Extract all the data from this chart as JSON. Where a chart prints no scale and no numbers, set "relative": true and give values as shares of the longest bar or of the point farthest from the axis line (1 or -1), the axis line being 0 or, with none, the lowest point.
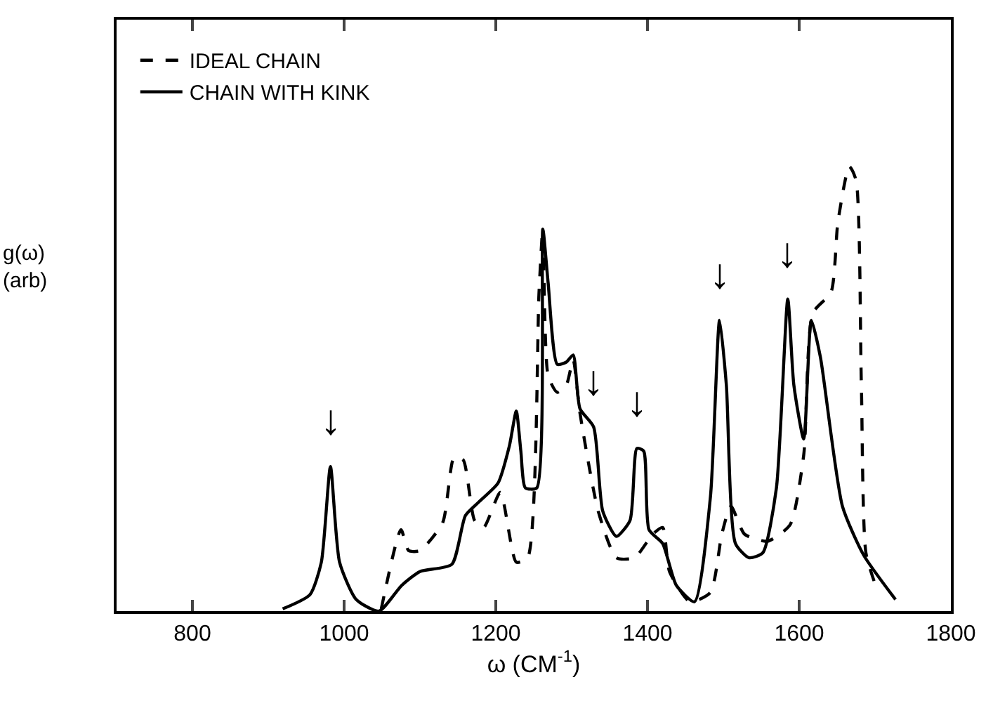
{
  "chart_data": {
    "type": "line",
    "relative": true,
    "xlabel": "ω (CM$^{-1}$)",
    "ylabel": "g(ω)\n(arb)",
    "xlim": [
      700,
      1800
    ],
    "xticks": [
      800,
      1000,
      1200,
      1400,
      1600,
      1800
    ],
    "legend": "top left",
    "marker": "none",
    "series": [
      {
        "name": "IDEAL CHAIN",
        "color": "#000000",
        "line_style": "dashed",
        "x": [
          1049,
          1075,
          1085,
          1100,
          1130,
          1145,
          1157,
          1172,
          1184,
          1206,
          1227,
          1242,
          1257,
          1262,
          1269,
          1281,
          1293,
          1302,
          1311,
          1335,
          1359,
          1383,
          1407,
          1420,
          1429,
          1456,
          1483,
          1498,
          1510,
          1528,
          1558,
          1588,
          1606,
          1618,
          1642,
          1651,
          1666,
          1675,
          1682,
          1688,
          1703
        ],
        "values": [
          0.005,
          0.183,
          0.136,
          0.136,
          0.199,
          0.346,
          0.34,
          0.204,
          0.188,
          0.267,
          0.11,
          0.12,
          0.717,
          0.859,
          0.529,
          0.492,
          0.508,
          0.565,
          0.445,
          0.225,
          0.12,
          0.12,
          0.173,
          0.188,
          0.089,
          0.021,
          0.042,
          0.173,
          0.236,
          0.173,
          0.157,
          0.194,
          0.351,
          0.67,
          0.717,
          0.874,
          1.0,
          0.969,
          0.508,
          0.131,
          0.047
        ]
      },
      {
        "name": "CHAIN WITH KINK",
        "color": "#000000",
        "line_style": "solid",
        "x": [
          919,
          955,
          970,
          982,
          994,
          1016,
          1046,
          1076,
          1100,
          1142,
          1160,
          1178,
          1203,
          1218,
          1227,
          1233,
          1239,
          1254,
          1262,
          1269,
          1281,
          1293,
          1302,
          1311,
          1329,
          1341,
          1359,
          1377,
          1386,
          1395,
          1402,
          1420,
          1438,
          1462,
          1483,
          1495,
          1504,
          1516,
          1534,
          1552,
          1570,
          1585,
          1593,
          1606,
          1616,
          1628,
          1657,
          1685,
          1727
        ],
        "values": [
          0.005,
          0.037,
          0.11,
          0.325,
          0.11,
          0.026,
          0.0,
          0.058,
          0.089,
          0.105,
          0.215,
          0.246,
          0.288,
          0.372,
          0.45,
          0.36,
          0.277,
          0.277,
          0.859,
          0.738,
          0.555,
          0.56,
          0.576,
          0.455,
          0.414,
          0.225,
          0.168,
          0.204,
          0.366,
          0.36,
          0.183,
          0.152,
          0.058,
          0.021,
          0.257,
          0.654,
          0.508,
          0.152,
          0.12,
          0.131,
          0.277,
          0.702,
          0.508,
          0.387,
          0.654,
          0.571,
          0.236,
          0.126,
          0.026
        ]
      }
    ],
    "annotations": [
      {
        "text": "↓",
        "x": 982,
        "y": 0.325
      },
      {
        "text": "↓",
        "x": 1329,
        "y": 0.414
      },
      {
        "text": "↓",
        "x": 1386,
        "y": 0.366
      },
      {
        "text": "↓",
        "x": 1495,
        "y": 0.654
      },
      {
        "text": "↓",
        "x": 1585,
        "y": 0.702
      }
    ]
  }
}
